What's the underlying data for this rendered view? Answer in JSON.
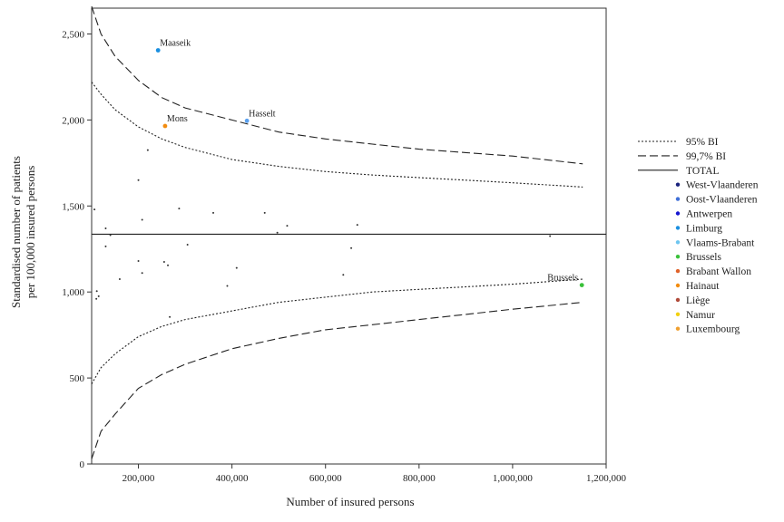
{
  "chart_data": {
    "type": "scatter",
    "title": "",
    "xlabel": "Number of insured persons",
    "ylabel_lines": [
      "Standardised number of patients",
      "per 100,000 insured persons"
    ],
    "xlim": [
      100000,
      1200000
    ],
    "ylim": [
      0,
      2650
    ],
    "x_ticks": [
      {
        "value": 200000,
        "label": "200,000"
      },
      {
        "value": 400000,
        "label": "400,000"
      },
      {
        "value": 600000,
        "label": "600,000"
      },
      {
        "value": 800000,
        "label": "800,000"
      },
      {
        "value": 1000000,
        "label": "1,000,000"
      },
      {
        "value": 1200000,
        "label": "1,200,000"
      }
    ],
    "y_ticks": [
      {
        "value": 0,
        "label": "0"
      },
      {
        "value": 500,
        "label": "500"
      },
      {
        "value": 1000,
        "label": "1,000"
      },
      {
        "value": 1500,
        "label": "1,500"
      },
      {
        "value": 2000,
        "label": "2,000"
      },
      {
        "value": 2500,
        "label": "2,500"
      }
    ],
    "grid": false,
    "legend_placement": "right",
    "total": 1336,
    "lines": [
      {
        "name": "95% BI upper",
        "style": "dotted",
        "points": [
          [
            100000,
            2220
          ],
          [
            120000,
            2150
          ],
          [
            150000,
            2060
          ],
          [
            200000,
            1960
          ],
          [
            250000,
            1890
          ],
          [
            300000,
            1840
          ],
          [
            400000,
            1770
          ],
          [
            500000,
            1730
          ],
          [
            600000,
            1700
          ],
          [
            700000,
            1680
          ],
          [
            800000,
            1665
          ],
          [
            900000,
            1650
          ],
          [
            1000000,
            1635
          ],
          [
            1150000,
            1610
          ]
        ]
      },
      {
        "name": "95% BI lower",
        "style": "dotted",
        "points": [
          [
            100000,
            465
          ],
          [
            120000,
            560
          ],
          [
            150000,
            640
          ],
          [
            200000,
            740
          ],
          [
            250000,
            800
          ],
          [
            300000,
            840
          ],
          [
            400000,
            890
          ],
          [
            500000,
            940
          ],
          [
            600000,
            970
          ],
          [
            700000,
            1000
          ],
          [
            800000,
            1015
          ],
          [
            900000,
            1030
          ],
          [
            1000000,
            1045
          ],
          [
            1150000,
            1075
          ]
        ]
      },
      {
        "name": "99,7% BI upper",
        "style": "dashed",
        "points": [
          [
            100000,
            2660
          ],
          [
            120000,
            2500
          ],
          [
            150000,
            2370
          ],
          [
            200000,
            2230
          ],
          [
            250000,
            2130
          ],
          [
            300000,
            2070
          ],
          [
            400000,
            2000
          ],
          [
            500000,
            1930
          ],
          [
            600000,
            1890
          ],
          [
            700000,
            1860
          ],
          [
            800000,
            1830
          ],
          [
            900000,
            1810
          ],
          [
            1000000,
            1790
          ],
          [
            1150000,
            1745
          ]
        ]
      },
      {
        "name": "99,7% BI lower",
        "style": "dashed",
        "points": [
          [
            100000,
            30
          ],
          [
            120000,
            190
          ],
          [
            150000,
            290
          ],
          [
            200000,
            440
          ],
          [
            250000,
            520
          ],
          [
            300000,
            580
          ],
          [
            400000,
            670
          ],
          [
            500000,
            730
          ],
          [
            600000,
            780
          ],
          [
            700000,
            810
          ],
          [
            800000,
            840
          ],
          [
            900000,
            870
          ],
          [
            1000000,
            900
          ],
          [
            1150000,
            940
          ]
        ]
      }
    ],
    "points": [
      {
        "x": 242000,
        "y": 2405,
        "color": "#1a8fe0",
        "label": "Maaseik"
      },
      {
        "x": 432000,
        "y": 1995,
        "color": "#5aa0ee",
        "label": "Hasselt"
      },
      {
        "x": 257000,
        "y": 1965,
        "color": "#f28c0f",
        "label": "Mons"
      },
      {
        "x": 1148000,
        "y": 1040,
        "color": "#3ac13a",
        "label": "Brussels"
      },
      {
        "x": 220000,
        "y": 1825,
        "color": "#333333"
      },
      {
        "x": 200000,
        "y": 1650,
        "color": "#333333"
      },
      {
        "x": 106000,
        "y": 1480,
        "color": "#333333"
      },
      {
        "x": 130000,
        "y": 1370,
        "color": "#333333"
      },
      {
        "x": 140000,
        "y": 1330,
        "color": "#333333"
      },
      {
        "x": 208000,
        "y": 1420,
        "color": "#333333"
      },
      {
        "x": 287000,
        "y": 1485,
        "color": "#333333"
      },
      {
        "x": 360000,
        "y": 1460,
        "color": "#333333"
      },
      {
        "x": 470000,
        "y": 1460,
        "color": "#333333"
      },
      {
        "x": 497000,
        "y": 1345,
        "color": "#333333"
      },
      {
        "x": 518000,
        "y": 1385,
        "color": "#333333"
      },
      {
        "x": 668000,
        "y": 1390,
        "color": "#333333"
      },
      {
        "x": 1080000,
        "y": 1325,
        "color": "#333333"
      },
      {
        "x": 130000,
        "y": 1265,
        "color": "#333333"
      },
      {
        "x": 305000,
        "y": 1275,
        "color": "#333333"
      },
      {
        "x": 200000,
        "y": 1180,
        "color": "#333333"
      },
      {
        "x": 255000,
        "y": 1175,
        "color": "#333333"
      },
      {
        "x": 263000,
        "y": 1155,
        "color": "#333333"
      },
      {
        "x": 208000,
        "y": 1110,
        "color": "#333333"
      },
      {
        "x": 410000,
        "y": 1140,
        "color": "#333333"
      },
      {
        "x": 638000,
        "y": 1100,
        "color": "#333333"
      },
      {
        "x": 160000,
        "y": 1075,
        "color": "#333333"
      },
      {
        "x": 390000,
        "y": 1035,
        "color": "#333333"
      },
      {
        "x": 111000,
        "y": 1005,
        "color": "#333333"
      },
      {
        "x": 115000,
        "y": 975,
        "color": "#333333"
      },
      {
        "x": 110000,
        "y": 960,
        "color": "#333333"
      },
      {
        "x": 267000,
        "y": 855,
        "color": "#333333"
      },
      {
        "x": 655000,
        "y": 1255,
        "color": "#333333"
      }
    ],
    "legend": [
      {
        "label": "95% BI",
        "kind": "line",
        "style": "dotted"
      },
      {
        "label": "99,7% BI",
        "kind": "line",
        "style": "dashed"
      },
      {
        "label": "TOTAL",
        "kind": "line",
        "style": "solid"
      },
      {
        "label": "West-Vlaanderen",
        "kind": "dot",
        "color": "#1a237e"
      },
      {
        "label": "Oost-Vlaanderen",
        "kind": "dot",
        "color": "#3f6fd8"
      },
      {
        "label": "Antwerpen",
        "kind": "dot",
        "color": "#1515d0"
      },
      {
        "label": "Limburg",
        "kind": "dot",
        "color": "#1a8fe0"
      },
      {
        "label": "Vlaams-Brabant",
        "kind": "dot",
        "color": "#6ec6f0"
      },
      {
        "label": "Brussels",
        "kind": "dot",
        "color": "#3ac13a"
      },
      {
        "label": "Brabant Wallon",
        "kind": "dot",
        "color": "#e0622a"
      },
      {
        "label": "Hainaut",
        "kind": "dot",
        "color": "#f28c0f"
      },
      {
        "label": "Liège",
        "kind": "dot",
        "color": "#b04a3a"
      },
      {
        "label": "Namur",
        "kind": "dot",
        "color": "#f2d00f"
      },
      {
        "label": "Luxembourg",
        "kind": "dot",
        "color": "#f0a030"
      }
    ]
  }
}
